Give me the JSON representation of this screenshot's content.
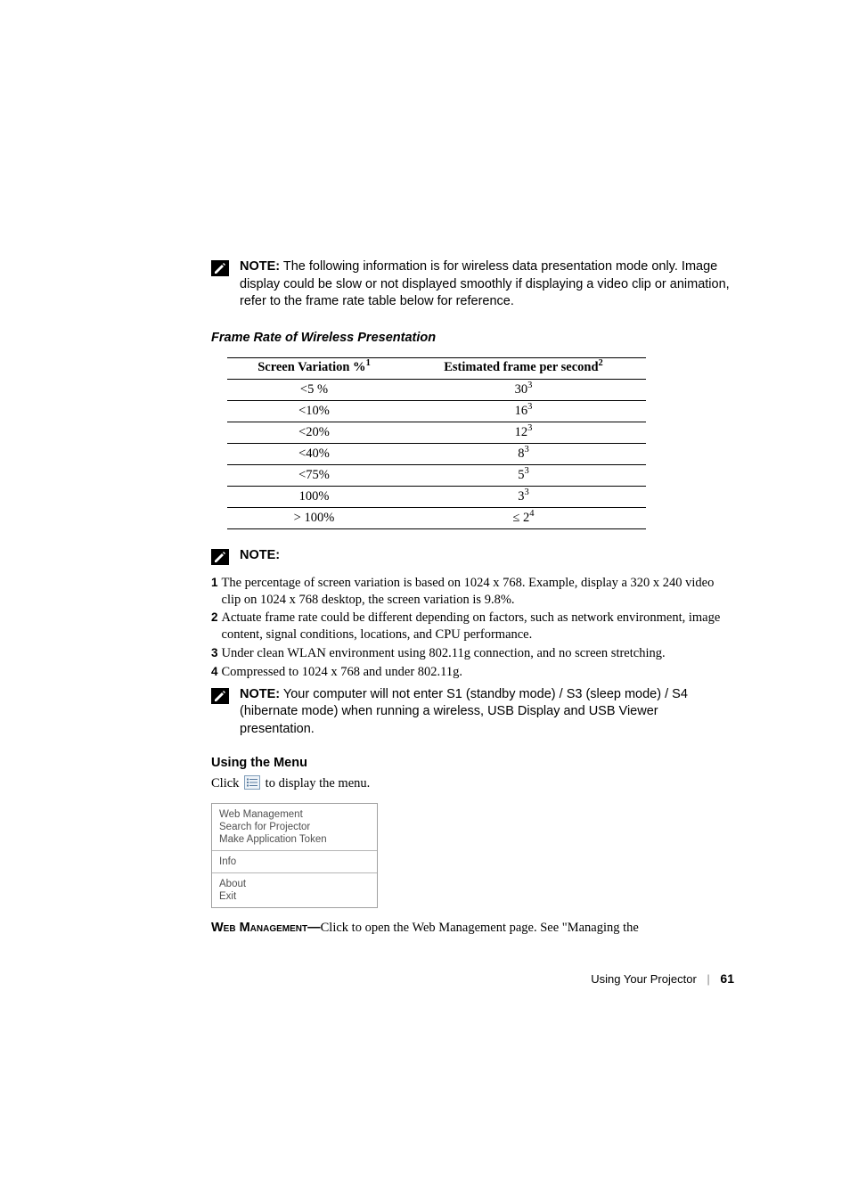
{
  "note1": {
    "label": "NOTE:",
    "text": " The following information is for wireless data presentation mode only. Image display could be slow or not displayed smoothly if displaying a video clip or animation, refer to the frame rate table below for reference."
  },
  "table_heading": "Frame Rate of Wireless Presentation",
  "table": {
    "col1_header": "Screen Variation %",
    "col1_sup": "1",
    "col2_header": "Estimated frame per second",
    "col2_sup": "2",
    "rows": [
      {
        "c1": "<5 %",
        "c2": "30",
        "c2s": "3"
      },
      {
        "c1": "<10%",
        "c2": "16",
        "c2s": "3"
      },
      {
        "c1": "<20%",
        "c2": "12",
        "c2s": "3"
      },
      {
        "c1": "<40%",
        "c2": "8",
        "c2s": "3"
      },
      {
        "c1": "<75%",
        "c2": "5",
        "c2s": "3"
      },
      {
        "c1": "100%",
        "c2": "3",
        "c2s": "3"
      },
      {
        "c1": "> 100%",
        "c2": "≤ 2",
        "c2s": "4"
      }
    ]
  },
  "note2_label": "NOTE:",
  "numbered": [
    {
      "n": "1",
      "t": "The percentage of screen variation is based on 1024 x 768.  Example, display a 320 x 240 video clip on 1024 x 768 desktop, the screen variation is 9.8%."
    },
    {
      "n": "2",
      "t": "Actuate frame rate could be different depending on factors, such as network environment, image content, signal conditions, locations, and CPU performance."
    },
    {
      "n": "3",
      "t": "Under clean WLAN environment using 802.11g connection, and no screen stretching."
    },
    {
      "n": "4",
      "t": "Compressed to 1024 x 768 and under 802.11g."
    }
  ],
  "note3": {
    "label": "NOTE:",
    "text": " Your computer will not enter S1 (standby mode) / S3 (sleep mode) / S4 (hibernate mode) when running a wireless, USB Display and USB Viewer presentation."
  },
  "menu_heading": "Using the Menu",
  "menu_instruction_pre": "Click ",
  "menu_instruction_post": " to display the menu.",
  "menu_items": {
    "g1": [
      "Web Management",
      "Search for Projector",
      "Make Application Token"
    ],
    "g2": [
      "Info"
    ],
    "g3": [
      "About",
      "Exit"
    ]
  },
  "web_mgmt_label": "Web Management—",
  "web_mgmt_text": "Click to open the Web Management page. See \"Managing the",
  "footer_text": "Using Your Projector",
  "footer_page": "61"
}
